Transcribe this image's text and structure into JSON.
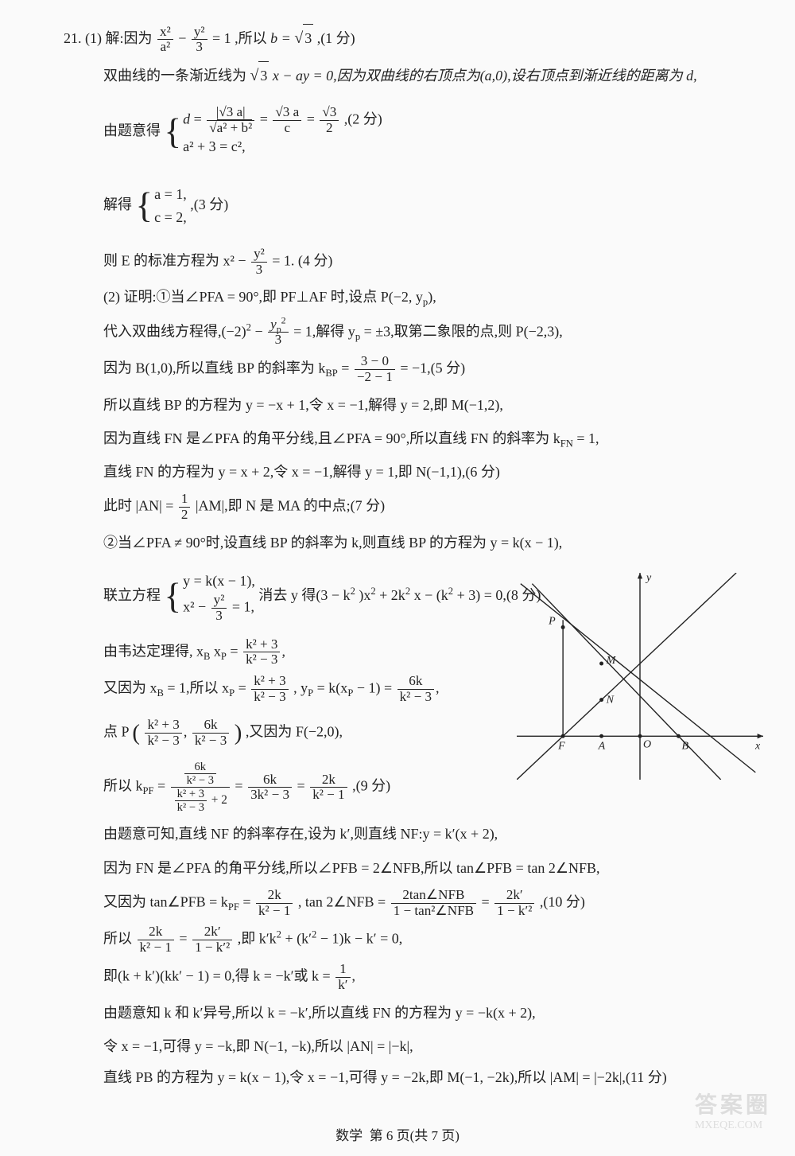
{
  "problem_number": "21.",
  "part1_label": "(1)",
  "part2_label": "(2)",
  "lines": {
    "l1a": "解:因为",
    "l1b": ",所以 ",
    "b_eq": "b = ",
    "sqrt3": "3",
    "score1": ",(1 分)",
    "l2": "双曲线的一条渐近线为",
    "l2b": "x − ay = 0,因为双曲线的右顶点为(a,0),设右顶点到渐近线的距离为 d,",
    "l3": "由题意得",
    "score2": ",(2 分)",
    "l4": "解得",
    "score3": ",(3 分)",
    "l5": "则 E 的标准方程为 ",
    "score4": "(4 分)",
    "l6": "证明:①当∠PFA = 90°,即 PF⊥AF 时,设点 P(−2, y",
    "l6b": "),",
    "l7": "代入双曲线方程得,(−2)",
    "l7b": " = 1,解得 y",
    "l7c": " = ±3,取第二象限的点,则 P(−2,3),",
    "l8": "因为 B(1,0),所以直线 BP 的斜率为 k",
    "l8b": " = −1,(5 分)",
    "l9": "所以直线 BP 的方程为 y = −x + 1,令 x = −1,解得 y = 2,即 M(−1,2),",
    "l10": "因为直线 FN 是∠PFA 的角平分线,且∠PFA = 90°,所以直线 FN 的斜率为 k",
    "l10b": " = 1,",
    "l11": "直线 FN 的方程为 y = x + 2,令 x = −1,解得 y = 1,即 N(−1,1),(6 分)",
    "l12": "此时 |AN| = ",
    "l12b": "|AM|,即 N 是 MA 的中点;(7 分)",
    "l13": "②当∠PFA ≠ 90°时,设直线 BP 的斜率为 k,则直线 BP 的方程为 y = k(x − 1),",
    "l14": "联立方程",
    "l14b": "消去 y 得(3 − k",
    "l14c": ")x",
    "l14d": " + 2k",
    "l14e": "x − (k",
    "l14f": " + 3) = 0,(8 分)",
    "l15": "由韦达定理得, x",
    "l15b": "x",
    "l16": "又因为 x",
    "l16b": " = 1,所以 x",
    "l16c": ", y",
    "l16d": " = k(x",
    "l16e": " − 1) = ",
    "l17": "点 P",
    "l17b": ",又因为 F(−2,0),",
    "l18": "所以 k",
    "l18b": ",(9 分)",
    "l19": "由题意可知,直线 NF 的斜率存在,设为 k′,则直线 NF:y = k′(x + 2),",
    "l20": "因为 FN 是∠PFA 的角平分线,所以∠PFB = 2∠NFB,所以 tan∠PFB = tan 2∠NFB,",
    "l21": "又因为 tan∠PFB = k",
    "l21b": ", tan 2∠NFB = ",
    "l21c": ",(10 分)",
    "l22": "所以",
    "l22b": ",即 k′k",
    "l22c": " + (k′",
    "l22d": " − 1)k − k′ = 0,",
    "l23": "即(k + k′)(kk′ − 1) = 0,得 k = −k′或 k = ",
    "l24": "由题意知 k 和 k′异号,所以 k = −k′,所以直线 FN 的方程为 y = −k(x + 2),",
    "l25": "令 x = −1,可得 y = −k,即 N(−1, −k),所以 |AN| = |−k|,",
    "l26": "直线 PB 的方程为 y = k(x − 1),令 x = −1,可得 y = −2k,即 M(−1, −2k),所以 |AM| = |−2k|,(11 分)"
  },
  "fracs": {
    "hyperbola_a": {
      "num": "x²",
      "den": "a²"
    },
    "hyperbola_b": {
      "num": "y²",
      "den": "3"
    },
    "eq1": " − ",
    "eq1r": " = 1",
    "d_frac1_num": "|√3 a|",
    "d_frac1_den_inner": "a² + b²",
    "d_frac2": {
      "num": "√3 a",
      "den": "c"
    },
    "d_frac3": {
      "num": "√3",
      "den": "2"
    },
    "brace1_row2": "a² + 3 = c²,",
    "brace2_row1": "a = 1,",
    "brace2_row2": "c = 2,",
    "std_eq": {
      "num": "y²",
      "den": "3"
    },
    "std_eq_pre": "x² − ",
    "std_eq_post": " = 1. ",
    "sub_p": "p",
    "sup2": "2",
    "k_BP": "BP",
    "k_FN": "FN",
    "k_PF": "PF",
    "sub_B": "B",
    "sub_P": "P",
    "slope_bp": {
      "num": "3 − 0",
      "den": "−2 − 1"
    },
    "half": {
      "num": "1",
      "den": "2"
    },
    "brace3_row1": "y = k(x − 1),",
    "brace3_row2_pre": "x² − ",
    "brace3_row2": {
      "num": "y²",
      "den": "3"
    },
    "brace3_row2_post": " = 1,",
    "vieta": {
      "num": "k² + 3",
      "den": "k² − 3"
    },
    "xp": {
      "num": "k² + 3",
      "den": "k² − 3"
    },
    "yp": {
      "num": "6k",
      "den": "k² − 3"
    },
    "pt1": {
      "num": "k² + 3",
      "den": "k² − 3"
    },
    "pt2": {
      "num": "6k",
      "den": "k² − 3"
    },
    "kpf_top": {
      "num": "6k",
      "den": "k² − 3"
    },
    "kpf_bot_a": {
      "num": "k² + 3",
      "den": "k² − 3"
    },
    "kpf_bot_b": " + 2",
    "kpf_mid": {
      "num": "6k",
      "den": "3k² − 3"
    },
    "kpf_fin": {
      "num": "2k",
      "den": "k² − 1"
    },
    "tan_pfb": {
      "num": "2k",
      "den": "k² − 1"
    },
    "tan2_a": {
      "num": "2tan∠NFB",
      "den": "1 − tan²∠NFB"
    },
    "tan2_b": {
      "num": "2k′",
      "den": "1 − k′²"
    },
    "eq22a": {
      "num": "2k",
      "den": "k² − 1"
    },
    "eq22b": {
      "num": "2k′",
      "den": "1 − k′²"
    },
    "onek": {
      "num": "1",
      "den": "k′"
    }
  },
  "footer": {
    "subject": "数学",
    "page": "第 6 页(共 7 页)"
  },
  "watermark": {
    "title": "答案圈",
    "url": "MXEQE.COM"
  },
  "diagram": {
    "type": "line-geometry",
    "background_color": "#fafafa",
    "stroke_color": "#222222",
    "axis_color": "#222222",
    "stroke_width": 1.4,
    "axis_arrow_size": 8,
    "font_size": 14,
    "labels": {
      "x": "x",
      "y": "y",
      "O": "O",
      "F": "F",
      "A": "A",
      "B": "B",
      "P": "P",
      "M": "M",
      "N": "N"
    },
    "x_range": [
      -3.2,
      3.2
    ],
    "y_range": [
      -1.2,
      4.5
    ],
    "points": {
      "O": [
        0,
        0
      ],
      "F": [
        -2,
        0
      ],
      "A": [
        -1,
        0
      ],
      "B": [
        1,
        0
      ],
      "P": [
        -2,
        3
      ],
      "M": [
        -1,
        2
      ],
      "N": [
        -1,
        1
      ]
    },
    "lines_to_draw": [
      {
        "from": [
          -3.2,
          0
        ],
        "to": [
          3.2,
          0
        ],
        "arrow": "end"
      },
      {
        "from": [
          0,
          -1.2
        ],
        "to": [
          0,
          4.5
        ],
        "arrow": "end"
      },
      {
        "from": [
          -2.8,
          4.2
        ],
        "to": [
          1,
          0
        ]
      },
      {
        "from": [
          1,
          0
        ],
        "to": [
          2.1,
          -1.2
        ]
      },
      {
        "from": [
          -3.2,
          -1.2
        ],
        "to": [
          2.5,
          4.5
        ]
      },
      {
        "from": [
          -2,
          0
        ],
        "to": [
          -2,
          3.2
        ]
      },
      {
        "from": [
          -3.1,
          4.2
        ],
        "to": [
          3,
          -1
        ]
      }
    ]
  },
  "colors": {
    "text": "#222222",
    "bg": "#fafafa"
  }
}
